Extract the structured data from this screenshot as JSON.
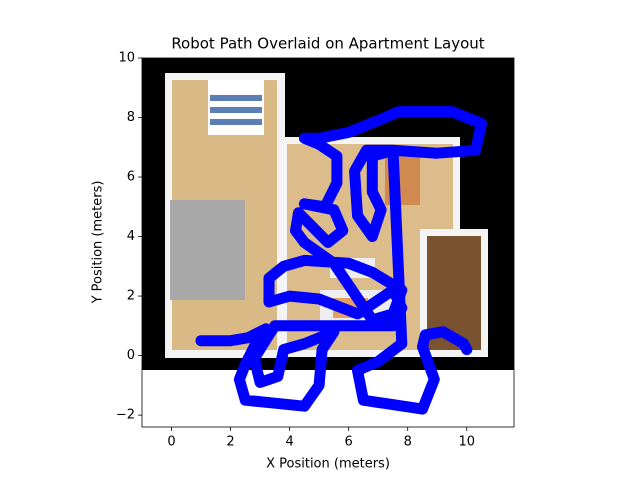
{
  "chart_data": {
    "type": "line",
    "title": "Robot Path Overlaid on Apartment Layout",
    "xlabel": "X Position (meters)",
    "ylabel": "Y Position (meters)",
    "xlim": [
      -1,
      11.6
    ],
    "ylim": [
      -2.4,
      10
    ],
    "xticks": [
      0,
      2,
      4,
      6,
      8,
      10
    ],
    "yticks": [
      {
        "value": -2,
        "label": "−2"
      },
      0,
      2,
      4,
      6,
      8,
      10
    ],
    "series": [
      {
        "color": "#0000ff",
        "x": [
          1.0,
          2.0,
          2.6,
          3.2,
          2.8,
          2.5,
          2.3,
          2.5,
          3.5,
          4.5,
          5.0,
          5.1,
          5.5,
          4.5,
          3.8,
          3.6,
          3.0,
          2.8,
          3.3,
          3.5,
          4.7,
          6.0,
          7.5,
          7.8,
          7.5,
          6.3,
          5.0,
          4.0,
          3.3,
          3.3,
          3.8,
          4.5,
          6.0,
          6.8,
          7.8,
          7.5,
          6.8,
          5.5,
          4.5,
          4.2,
          4.3,
          5.3,
          5.8,
          5.5,
          4.5,
          5.2,
          5.6,
          5.6,
          5.0,
          4.5,
          5.0,
          6.0,
          7.0,
          7.7,
          9.5,
          10.5,
          10.3,
          9.0,
          7.5,
          6.8,
          6.8,
          7.1,
          6.8,
          6.3,
          6.2,
          6.6,
          7.5,
          7.8,
          7.0,
          6.3,
          6.5,
          8.5,
          8.9,
          8.5,
          8.6,
          9.2,
          9.9,
          10.0
        ],
        "y": [
          0.5,
          0.5,
          0.6,
          0.9,
          0.3,
          -0.3,
          -0.8,
          -1.5,
          -1.6,
          -1.7,
          -1.0,
          0.2,
          0.8,
          0.4,
          0.2,
          -0.7,
          -0.9,
          -0.1,
          0.7,
          1.0,
          1.0,
          1.0,
          1.0,
          1.6,
          2.2,
          1.4,
          1.9,
          2.0,
          1.8,
          2.6,
          3.0,
          3.2,
          3.1,
          2.8,
          2.2,
          1.4,
          1.2,
          3.1,
          3.8,
          4.2,
          4.8,
          3.8,
          4.2,
          4.9,
          5.1,
          5.0,
          5.8,
          6.7,
          7.1,
          7.3,
          7.3,
          7.5,
          7.9,
          8.2,
          8.2,
          7.8,
          6.9,
          6.8,
          6.9,
          6.7,
          5.5,
          4.9,
          4.0,
          4.7,
          6.2,
          6.9,
          6.9,
          0.4,
          -0.2,
          -0.5,
          -1.5,
          -1.8,
          -0.8,
          0.3,
          0.7,
          0.8,
          0.4,
          0.2
        ]
      }
    ]
  }
}
